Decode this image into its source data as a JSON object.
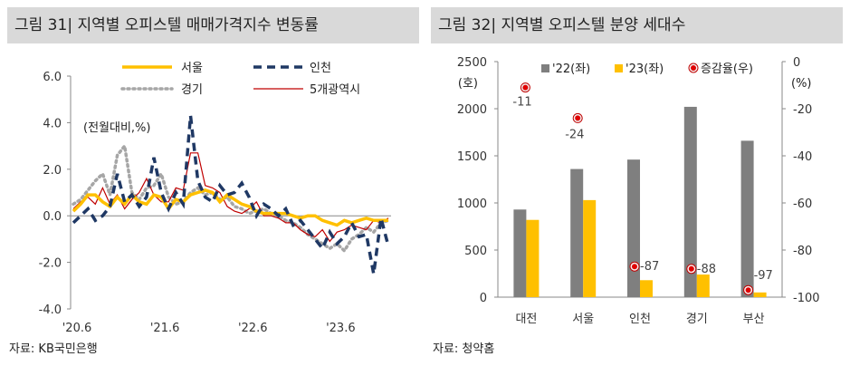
{
  "left": {
    "header": "그림 31| 지역별 오피스텔 매매가격지수 변동률",
    "source": "자료: KB국민은행",
    "chart_data": {
      "type": "line",
      "ylabel": "(전월대비,%)",
      "ylim": [
        -4.0,
        6.0
      ],
      "y_ticks": [
        "6.0",
        "4.0",
        "2.0",
        "0.0",
        "-2.0",
        "-4.0"
      ],
      "x_ticks": [
        "'20.6",
        "'21.6",
        "'22.6",
        "'23.6"
      ],
      "series": [
        {
          "name": "서울",
          "color": "#ffc000",
          "style": "solid-thick",
          "values": [
            0.2,
            0.5,
            0.9,
            0.9,
            0.6,
            0.4,
            0.8,
            0.5,
            0.9,
            0.6,
            0.5,
            0.9,
            0.8,
            0.3,
            0.7,
            0.6,
            0.9,
            1.0,
            1.1,
            1.0,
            0.6,
            0.9,
            0.7,
            0.5,
            0.4,
            0.2,
            0.1,
            0.1,
            0.1,
            0.1,
            0.0,
            -0.1,
            0.0,
            0.0,
            -0.2,
            -0.3,
            -0.4,
            -0.2,
            -0.3,
            -0.2,
            -0.1,
            -0.2,
            -0.2,
            -0.2
          ]
        },
        {
          "name": "인천",
          "color": "#1f3864",
          "style": "dashed",
          "values": [
            -0.3,
            0.0,
            0.3,
            -0.2,
            0.0,
            0.4,
            1.8,
            0.6,
            0.9,
            0.4,
            0.8,
            2.5,
            1.0,
            0.3,
            1.0,
            0.5,
            4.3,
            1.5,
            0.8,
            0.6,
            1.3,
            0.9,
            1.0,
            1.4,
            0.8,
            0.0,
            0.5,
            0.3,
            0.0,
            0.3,
            -0.4,
            -0.2,
            -0.6,
            -1.0,
            -1.4,
            -0.7,
            -1.2,
            -0.9,
            -0.3,
            -0.9,
            -0.8,
            -2.5,
            -0.1,
            -1.3
          ]
        },
        {
          "name": "경기",
          "color": "#a6a6a6",
          "style": "dotted",
          "values": [
            0.5,
            0.7,
            1.1,
            1.5,
            1.8,
            0.9,
            2.6,
            3.0,
            1.0,
            0.7,
            1.2,
            1.3,
            1.8,
            0.8,
            0.5,
            0.6,
            1.0,
            1.2,
            0.9,
            1.0,
            0.7,
            0.8,
            0.4,
            0.3,
            0.1,
            0.2,
            0.3,
            0.1,
            0.0,
            -0.2,
            -0.3,
            -0.5,
            -0.8,
            -1.0,
            -1.2,
            -1.4,
            -1.2,
            -1.5,
            -1.0,
            -0.8,
            -0.5,
            -0.7,
            -0.3,
            -0.2
          ]
        },
        {
          "name": "5개광역시",
          "color": "#c00000",
          "style": "solid-thin",
          "values": [
            0.3,
            0.6,
            0.8,
            0.5,
            1.2,
            0.5,
            0.9,
            0.3,
            0.7,
            1.0,
            1.6,
            0.9,
            0.6,
            0.6,
            1.2,
            1.1,
            2.7,
            2.7,
            1.3,
            1.2,
            1.0,
            0.4,
            0.2,
            0.1,
            0.3,
            0.6,
            0.0,
            0.0,
            -0.1,
            -0.3,
            -0.3,
            -0.6,
            -0.8,
            -0.9,
            -0.6,
            -1.1,
            -0.7,
            -0.6,
            -0.4,
            -0.5,
            -0.6,
            -0.2,
            -0.3,
            -0.1
          ]
        }
      ]
    }
  },
  "right": {
    "header": "그림 32| 지역별 오피스텔 분양 세대수",
    "source": "자료: 청약홈",
    "chart_data": {
      "type": "bar",
      "categories": [
        "대전",
        "서울",
        "인천",
        "경기",
        "부산"
      ],
      "ylabel_left": "(호)",
      "ylabel_right": "(%)",
      "ylim_left": [
        0,
        2500
      ],
      "ylim_right": [
        -100,
        0
      ],
      "y_ticks_left": [
        "2500",
        "2000",
        "1500",
        "1000",
        "500",
        "0"
      ],
      "y_ticks_right": [
        "0",
        "-20",
        "-40",
        "-60",
        "-80",
        "-100"
      ],
      "legend": [
        "'22(좌)",
        "'23(좌)",
        "증감율(우)"
      ],
      "series": [
        {
          "name": "'22(좌)",
          "color": "#7f7f7f",
          "values": [
            930,
            1360,
            1460,
            2020,
            1660
          ]
        },
        {
          "name": "'23(좌)",
          "color": "#ffc000",
          "values": [
            820,
            1030,
            180,
            240,
            50
          ]
        },
        {
          "name": "증감율(우)",
          "color": "#c00000",
          "axis": "right",
          "values": [
            -11,
            -24,
            -87,
            -88,
            -97
          ],
          "labels": [
            "-11",
            "-24",
            "-87",
            "-88",
            "-97"
          ]
        }
      ]
    }
  }
}
